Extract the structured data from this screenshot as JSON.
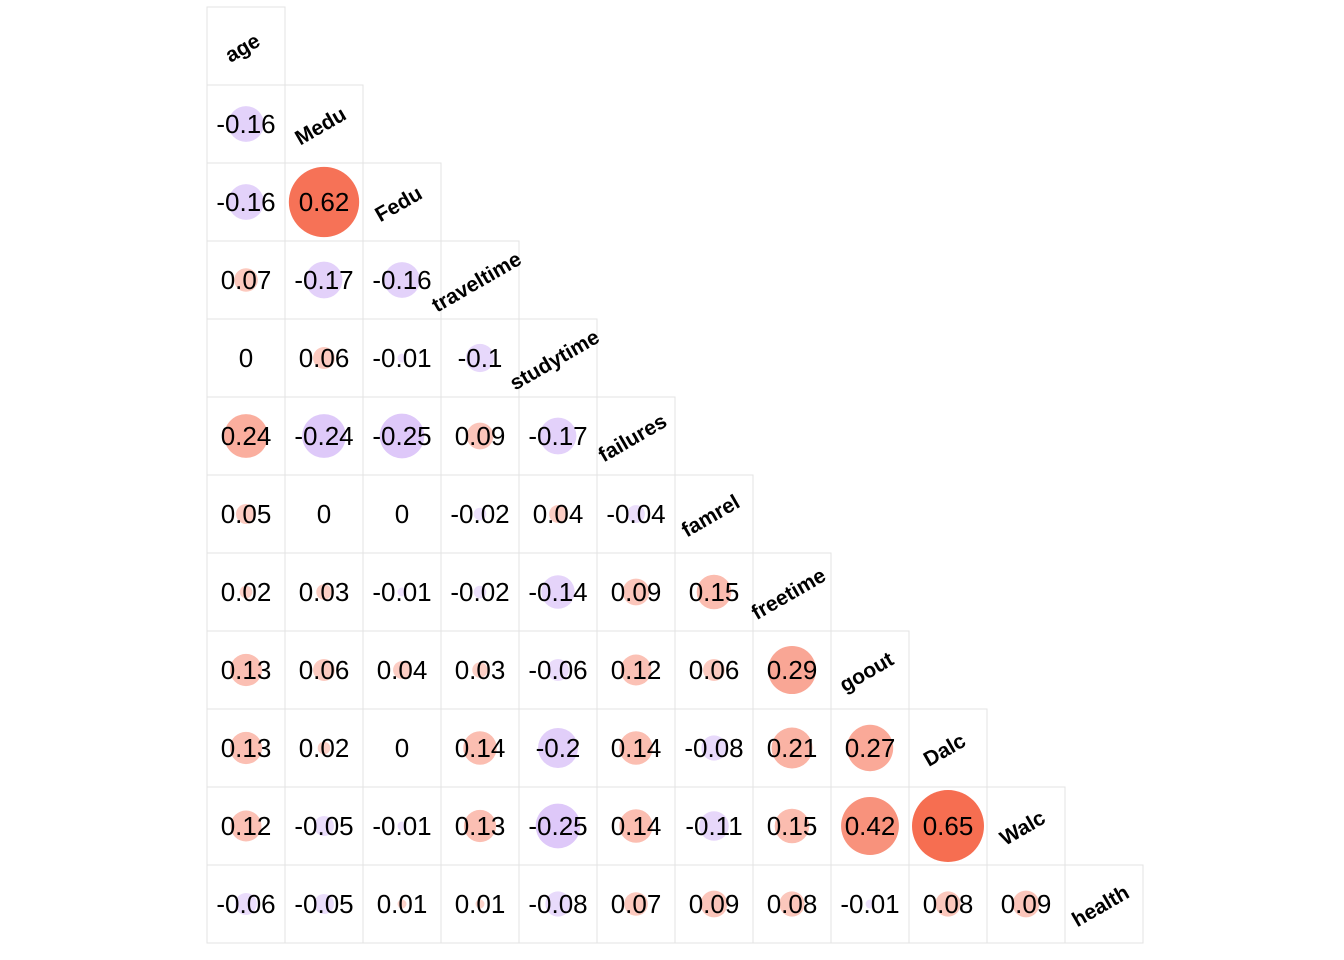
{
  "chart_data": {
    "type": "heatmap",
    "variables": [
      "age",
      "Medu",
      "Fedu",
      "traveltime",
      "studytime",
      "failures",
      "famrel",
      "freetime",
      "goout",
      "Dalc",
      "Walc",
      "health"
    ],
    "correlations": [
      [],
      [
        -0.16
      ],
      [
        -0.16,
        0.62
      ],
      [
        0.07,
        -0.17,
        -0.16
      ],
      [
        0,
        0.06,
        -0.01,
        -0.1
      ],
      [
        0.24,
        -0.24,
        -0.25,
        0.09,
        -0.17
      ],
      [
        0.05,
        0,
        0,
        -0.02,
        0.04,
        -0.04
      ],
      [
        0.02,
        0.03,
        -0.01,
        -0.02,
        -0.14,
        0.09,
        0.15
      ],
      [
        0.13,
        0.06,
        0.04,
        0.03,
        -0.06,
        0.12,
        0.06,
        0.29
      ],
      [
        0.13,
        0.02,
        0,
        0.14,
        -0.2,
        0.14,
        -0.08,
        0.21,
        0.27
      ],
      [
        0.12,
        -0.05,
        -0.01,
        0.13,
        -0.25,
        0.14,
        -0.11,
        0.15,
        0.42,
        0.65
      ],
      [
        -0.06,
        -0.05,
        0.01,
        0.01,
        -0.08,
        0.07,
        0.09,
        0.08,
        -0.01,
        0.08,
        0.09
      ]
    ],
    "value_labels": [
      [],
      [
        "-0.16"
      ],
      [
        "-0.16",
        "0.62"
      ],
      [
        "0.07",
        "-0.17",
        "-0.16"
      ],
      [
        "0",
        "0.06",
        "-0.01",
        "-0.1"
      ],
      [
        "0.24",
        "-0.24",
        "-0.25",
        "0.09",
        "-0.17"
      ],
      [
        "0.05",
        "0",
        "0",
        "-0.02",
        "0.04",
        "-0.04"
      ],
      [
        "0.02",
        "0.03",
        "-0.01",
        "-0.02",
        "-0.14",
        "0.09",
        "0.15"
      ],
      [
        "0.13",
        "0.06",
        "0.04",
        "0.03",
        "-0.06",
        "0.12",
        "0.06",
        "0.29"
      ],
      [
        "0.13",
        "0.02",
        "0",
        "0.14",
        "-0.2",
        "0.14",
        "-0.08",
        "0.21",
        "0.27"
      ],
      [
        "0.12",
        "-0.05",
        "-0.01",
        "0.13",
        "-0.25",
        "0.14",
        "-0.11",
        "0.15",
        "0.42",
        "0.65"
      ],
      [
        "-0.06",
        "-0.05",
        "0.01",
        "0.01",
        "-0.08",
        "0.07",
        "0.09",
        "0.08",
        "-0.01",
        "0.08",
        "0.09"
      ]
    ],
    "lower_triangle": true,
    "circle_size_encodes": "absolute correlation",
    "colors": {
      "positive": "#f4512f",
      "negative": "#b98cf2",
      "grid": "#e3e3e3",
      "text": "#000000"
    }
  }
}
